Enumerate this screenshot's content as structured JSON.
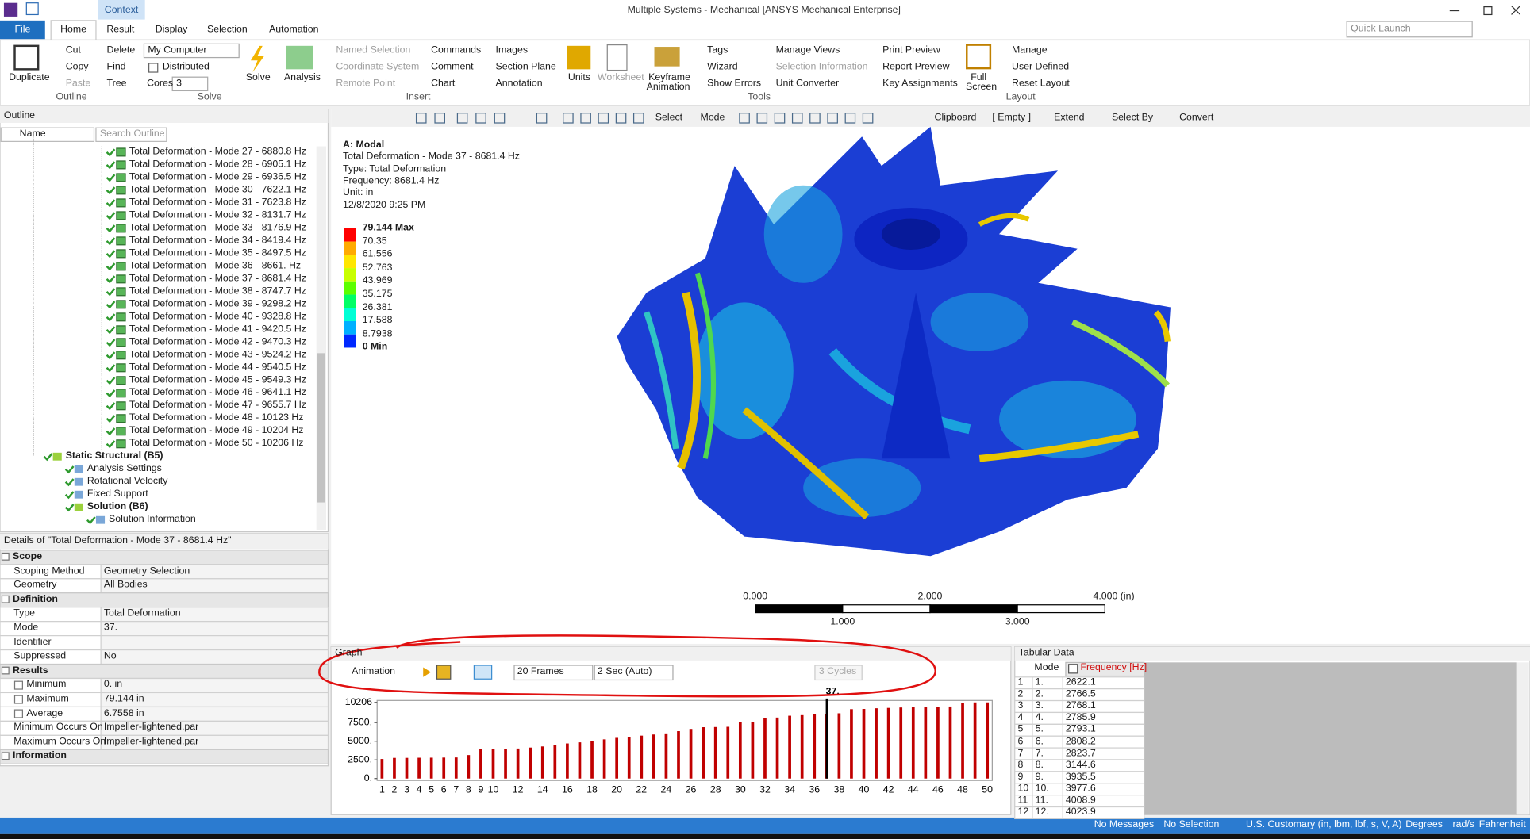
{
  "window": {
    "title": "Multiple Systems - Mechanical [ANSYS Mechanical Enterprise]",
    "context": "Context",
    "quick_launch": "Quick Launch"
  },
  "ribbon": {
    "tabs": [
      "File",
      "Home",
      "Result",
      "Display",
      "Selection",
      "Automation"
    ],
    "items": [
      "Duplicate",
      "Cut",
      "Delete",
      "Copy",
      "Find",
      "Paste",
      "Tree",
      "My Computer",
      "Distributed",
      "Cores",
      "3",
      "Solve",
      "Analysis",
      "Named Selection",
      "Coordinate System",
      "Remote Point",
      "Commands",
      "Comment",
      "Chart",
      "Images",
      "Section Plane",
      "Annotation",
      "Units",
      "Worksheet",
      "Keyframe",
      "Animation",
      "Tags",
      "Wizard",
      "Show Errors",
      "Manage Views",
      "Selection Information",
      "Unit Converter",
      "Print Preview",
      "Report Preview",
      "Key Assignments",
      "Full",
      "Screen",
      "Manage",
      "User Defined",
      "Reset Layout"
    ],
    "group_labels": [
      "Outline",
      "Solve",
      "Insert",
      "Tools",
      "Layout"
    ]
  },
  "outline": {
    "title": "Outline",
    "column": "Name",
    "search": "Search Outline",
    "modes": [
      "Total Deformation - Mode 27 - 6880.8 Hz",
      "Total Deformation - Mode 28 - 6905.1 Hz",
      "Total Deformation - Mode 29 - 6936.5 Hz",
      "Total Deformation - Mode 30 - 7622.1 Hz",
      "Total Deformation - Mode 31 - 7623.8 Hz",
      "Total Deformation - Mode 32 - 8131.7 Hz",
      "Total Deformation - Mode 33 - 8176.9 Hz",
      "Total Deformation - Mode 34 - 8419.4 Hz",
      "Total Deformation - Mode 35 - 8497.5 Hz",
      "Total Deformation - Mode 36 - 8661. Hz",
      "Total Deformation - Mode 37 - 8681.4 Hz",
      "Total Deformation - Mode 38 - 8747.7 Hz",
      "Total Deformation - Mode 39 - 9298.2 Hz",
      "Total Deformation - Mode 40 - 9328.8 Hz",
      "Total Deformation - Mode 41 - 9420.5 Hz",
      "Total Deformation - Mode 42 - 9470.3 Hz",
      "Total Deformation - Mode 43 - 9524.2 Hz",
      "Total Deformation - Mode 44 - 9540.5 Hz",
      "Total Deformation - Mode 45 - 9549.3 Hz",
      "Total Deformation - Mode 46 - 9641.1 Hz",
      "Total Deformation - Mode 47 - 9655.7 Hz",
      "Total Deformation - Mode 48 - 10123 Hz",
      "Total Deformation - Mode 49 - 10204 Hz",
      "Total Deformation - Mode 50 - 10206 Hz"
    ],
    "static": [
      "Static Structural (B5)",
      "Analysis Settings",
      "Rotational Velocity",
      "Fixed Support",
      "Solution (B6)",
      "Solution Information"
    ]
  },
  "details": {
    "title": "Details of \"Total Deformation - Mode 37 - 8681.4 Hz\"",
    "sections": [
      {
        "name": "Scope",
        "rows": [
          [
            "Scoping Method",
            "Geometry Selection"
          ],
          [
            "Geometry",
            "All Bodies"
          ]
        ]
      },
      {
        "name": "Definition",
        "rows": [
          [
            "Type",
            "Total Deformation"
          ],
          [
            "Mode",
            "37."
          ],
          [
            "Identifier"
          ],
          [
            "Suppressed",
            "No"
          ]
        ]
      },
      {
        "name": "Results",
        "rows": [
          [
            "Minimum",
            "0. in"
          ],
          [
            "Maximum",
            "79.144 in"
          ],
          [
            "Average",
            "6.7558 in"
          ],
          [
            "Minimum Occurs On",
            "Impeller-lightened.par"
          ],
          [
            "Maximum Occurs On",
            "Impeller-lightened.par"
          ]
        ]
      },
      {
        "name": "Information"
      }
    ]
  },
  "viewport": {
    "toolbar": [
      "Select",
      "Mode",
      "Clipboard",
      "[ Empty ]",
      "Extend",
      "Select By",
      "Convert"
    ],
    "info": [
      "A: Modal",
      "Total Deformation - Mode 37 - 8681.4 Hz",
      "Type: Total Deformation",
      "Frequency: 8681.4 Hz",
      "Unit: in",
      "12/8/2020 9:25 PM"
    ],
    "legend": {
      "labels": [
        "79.144 Max",
        "70.35",
        "61.556",
        "52.763",
        "43.969",
        "35.175",
        "26.381",
        "17.588",
        "8.7938",
        "0 Min"
      ],
      "colors": [
        "#ff0000",
        "#ffaa00",
        "#ffe600",
        "#c8ff00",
        "#5cff00",
        "#00ff66",
        "#00ffd5",
        "#00b0ff",
        "#0028ff"
      ]
    },
    "scale": {
      "top": [
        "0.000",
        "2.000",
        "4.000 (in)"
      ],
      "bottom": [
        "1.000",
        "3.000"
      ]
    }
  },
  "graph_panel": {
    "title": "Graph",
    "animation": "Animation",
    "frames": "20 Frames",
    "duration": "2 Sec (Auto)",
    "cycles": "3 Cycles"
  },
  "chart_data": {
    "type": "bar",
    "categories": [
      "1",
      "2",
      "3",
      "4",
      "5",
      "6",
      "7",
      "8",
      "9",
      "10",
      null,
      "12",
      null,
      "14",
      null,
      "16",
      null,
      "18",
      null,
      "20",
      null,
      "22",
      null,
      "24",
      null,
      "26",
      null,
      "28",
      null,
      "30",
      null,
      "32",
      null,
      "34",
      null,
      "36",
      null,
      "38",
      null,
      "40",
      null,
      "42",
      null,
      "44",
      null,
      "46",
      null,
      "48",
      null,
      "50"
    ],
    "values": [
      2622.1,
      2766.5,
      2768.1,
      2785.9,
      2793.1,
      2808.2,
      2823.7,
      3144.6,
      3935.5,
      3977.6,
      4008.9,
      4023.9,
      4150,
      4300,
      4500,
      4700,
      4850,
      5050,
      5250,
      5450,
      5600,
      5750,
      5900,
      6050,
      6350,
      6650,
      6880.8,
      6905.1,
      6936.5,
      7622.1,
      7623.8,
      8131.7,
      8176.9,
      8419.4,
      8497.5,
      8661,
      8681.4,
      8747.7,
      9298.2,
      9328.8,
      9420.5,
      9470.3,
      9524.2,
      9540.5,
      9549.3,
      9641.1,
      9655.7,
      10123,
      10204,
      10206
    ],
    "color": "#c00000",
    "ylim": [
      0,
      10206
    ],
    "yticks": [
      {
        "value": 0,
        "label": "0."
      },
      {
        "value": 2500,
        "label": "2500."
      },
      {
        "value": 5000,
        "label": "5000."
      },
      {
        "value": 7500,
        "label": "7500."
      },
      10206
    ],
    "marker": {
      "value": 37,
      "label": "37."
    }
  },
  "tabular": {
    "title": "Tabular Data",
    "headers": [
      "Mode",
      "Frequency [Hz]"
    ],
    "rows": [
      [
        "1",
        "1.",
        "2622.1"
      ],
      [
        "2",
        "2.",
        "2766.5"
      ],
      [
        "3",
        "3.",
        "2768.1"
      ],
      [
        "4",
        "4.",
        "2785.9"
      ],
      [
        "5",
        "5.",
        "2793.1"
      ],
      [
        "6",
        "6.",
        "2808.2"
      ],
      [
        "7",
        "7.",
        "2823.7"
      ],
      [
        "8",
        "8.",
        "3144.6"
      ],
      [
        "9",
        "9.",
        "3935.5"
      ],
      [
        "10",
        "10.",
        "3977.6"
      ],
      [
        "11",
        "11.",
        "4008.9"
      ],
      [
        "12",
        "12.",
        "4023.9"
      ]
    ]
  },
  "status": [
    "No Messages",
    "No Selection",
    "U.S. Customary (in, lbm, lbf, s, V, A)",
    "Degrees",
    "rad/s",
    "Fahrenheit"
  ]
}
